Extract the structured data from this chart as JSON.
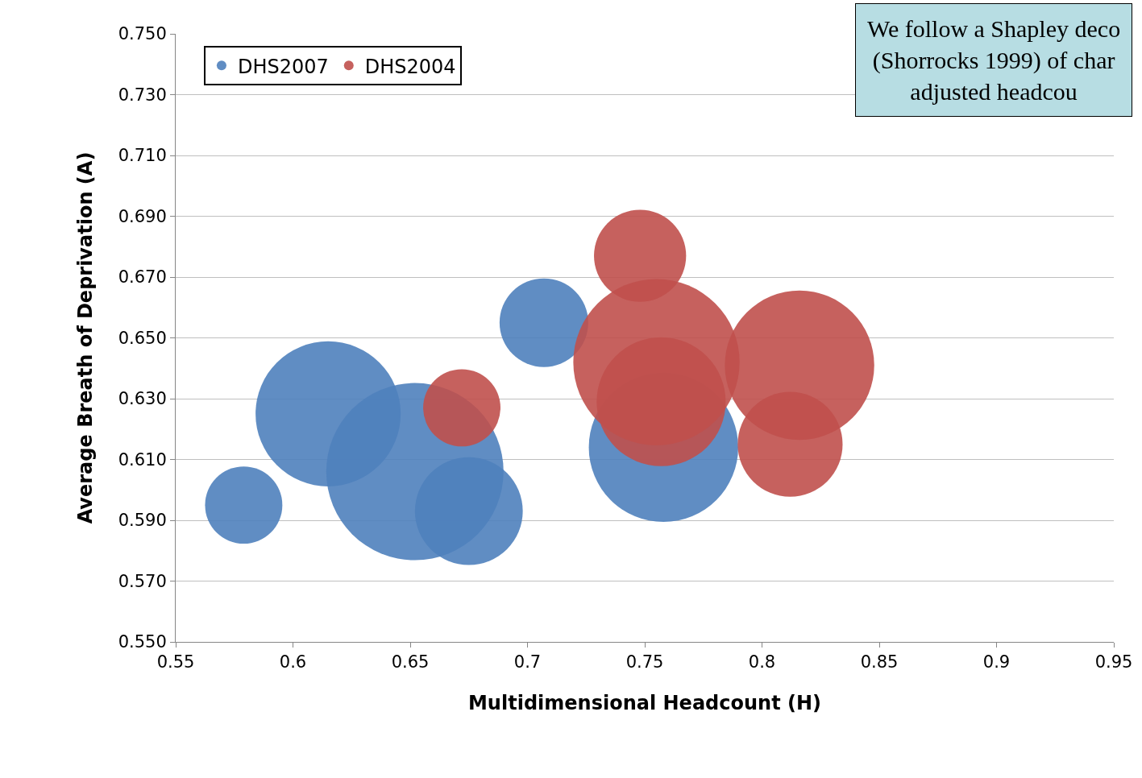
{
  "chart_data": {
    "type": "bubble",
    "xlabel": "Multidimensional Headcount (H)",
    "ylabel": "Average Breath of Deprivation (A)",
    "xlim": [
      0.55,
      0.95
    ],
    "xticks": [
      0.55,
      0.6,
      0.65,
      0.7,
      0.75,
      0.8,
      0.85,
      0.9,
      0.95
    ],
    "ylim": [
      0.55,
      0.75
    ],
    "yticks": [
      {
        "value": 0.55,
        "label": "0.550"
      },
      {
        "value": 0.57,
        "label": "0.570"
      },
      {
        "value": 0.59,
        "label": "0.590"
      },
      {
        "value": 0.61,
        "label": "0.610"
      },
      {
        "value": 0.63,
        "label": "0.630"
      },
      {
        "value": 0.65,
        "label": "0.650"
      },
      {
        "value": 0.67,
        "label": "0.670"
      },
      {
        "value": 0.69,
        "label": "0.690"
      },
      {
        "value": 0.71,
        "label": "0.710"
      },
      {
        "value": 0.73,
        "label": "0.730"
      },
      {
        "value": 0.75,
        "label": "0.750"
      }
    ],
    "grid": "y",
    "legend": "top left",
    "annotations": [
      "We follow a Shapley deco\n(Shorrocks 1999) of char\nadjusted headcou"
    ],
    "series": [
      {
        "name": "DHS2007",
        "color": "#4f81bd",
        "x": [
          0.579,
          0.615,
          0.652,
          0.675,
          0.707,
          0.758
        ],
        "values": [
          0.595,
          0.625,
          0.606,
          0.593,
          0.655,
          0.614
        ],
        "sizes": [
          0.19,
          0.67,
          1,
          0.37,
          0.25,
          0.71
        ]
      },
      {
        "name": "DHS2004",
        "color": "#c0504d",
        "x": [
          0.672,
          0.748,
          0.757,
          0.755,
          0.812,
          0.816
        ],
        "values": [
          0.627,
          0.677,
          0.629,
          0.642,
          0.615,
          0.641
        ],
        "sizes": [
          0.19,
          0.27,
          0.53,
          0.88,
          0.35,
          0.71
        ]
      }
    ]
  }
}
